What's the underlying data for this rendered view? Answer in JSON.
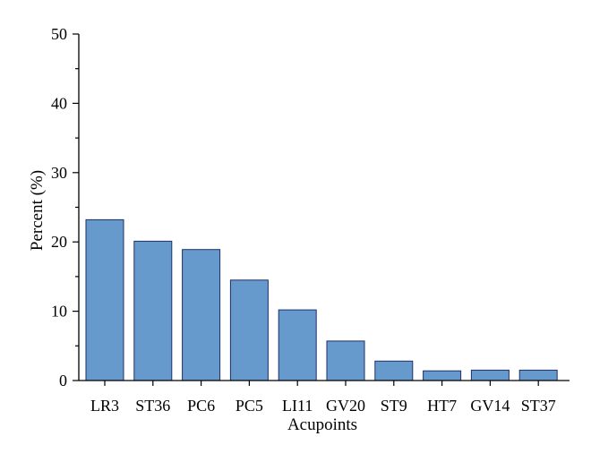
{
  "chart_data": {
    "type": "bar",
    "categories": [
      "LR3",
      "ST36",
      "PC6",
      "PC5",
      "LI11",
      "GV20",
      "ST9",
      "HT7",
      "GV14",
      "ST37"
    ],
    "values": [
      23.2,
      20.1,
      18.9,
      14.5,
      10.2,
      5.7,
      2.8,
      1.4,
      1.5,
      1.5
    ],
    "xlabel": "Acupoints",
    "ylabel": "Percent (%)",
    "ylim": [
      0,
      50
    ],
    "yticks": [
      "0",
      "10",
      "20",
      "30",
      "40",
      "50"
    ],
    "grid": false,
    "bar_color": "#6699cc"
  }
}
